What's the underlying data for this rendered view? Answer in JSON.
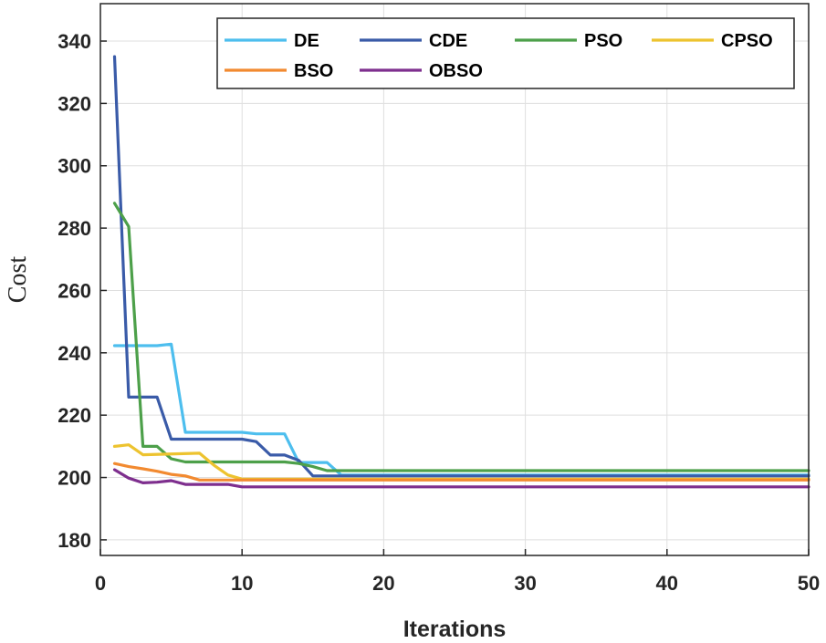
{
  "chart_data": {
    "type": "line",
    "title": "",
    "xlabel": "Iterations",
    "ylabel": "Cost",
    "xlim": [
      0,
      50
    ],
    "ylim": [
      175,
      352
    ],
    "xticks": [
      0,
      10,
      20,
      30,
      40,
      50
    ],
    "yticks": [
      180,
      200,
      220,
      240,
      260,
      280,
      300,
      320,
      340
    ],
    "grid": true,
    "legend_position": "top-right",
    "series": [
      {
        "name": "DE",
        "color": "#4DBEEE",
        "points": [
          [
            1,
            242.3
          ],
          [
            4,
            242.3
          ],
          [
            5,
            242.8
          ],
          [
            6,
            214.5
          ],
          [
            10,
            214.5
          ],
          [
            11,
            214.0
          ],
          [
            13,
            214.0
          ],
          [
            14,
            204.8
          ],
          [
            16,
            204.8
          ],
          [
            17,
            200.8
          ],
          [
            50,
            200.8
          ]
        ]
      },
      {
        "name": "CDE",
        "color": "#3A5BA8",
        "points": [
          [
            1,
            335
          ],
          [
            2,
            225.8
          ],
          [
            4,
            225.8
          ],
          [
            5,
            212.3
          ],
          [
            10,
            212.3
          ],
          [
            11,
            211.5
          ],
          [
            12,
            207.2
          ],
          [
            13,
            207.2
          ],
          [
            14,
            205.5
          ],
          [
            15,
            200.5
          ],
          [
            50,
            200.5
          ]
        ]
      },
      {
        "name": "PSO",
        "color": "#4DA04A",
        "points": [
          [
            1,
            288
          ],
          [
            2,
            280.5
          ],
          [
            3,
            210
          ],
          [
            4,
            210
          ],
          [
            5,
            206
          ],
          [
            6,
            205
          ],
          [
            13,
            205
          ],
          [
            14,
            204.5
          ],
          [
            15,
            203.5
          ],
          [
            16,
            202.2
          ],
          [
            50,
            202.2
          ]
        ]
      },
      {
        "name": "CPSO",
        "color": "#EDC32F",
        "points": [
          [
            1,
            210
          ],
          [
            2,
            210.5
          ],
          [
            3,
            207.3
          ],
          [
            7,
            207.8
          ],
          [
            8,
            204
          ],
          [
            9,
            200.8
          ],
          [
            10,
            199.5
          ],
          [
            50,
            199.5
          ]
        ]
      },
      {
        "name": "BSO",
        "color": "#F28A30",
        "points": [
          [
            1,
            204.5
          ],
          [
            2,
            203.5
          ],
          [
            3,
            202.8
          ],
          [
            4,
            202
          ],
          [
            5,
            201
          ],
          [
            6,
            200.5
          ],
          [
            7,
            199.2
          ],
          [
            50,
            199.2
          ]
        ]
      },
      {
        "name": "OBSO",
        "color": "#7E2F8E",
        "points": [
          [
            1,
            202.5
          ],
          [
            2,
            199.8
          ],
          [
            3,
            198.3
          ],
          [
            4,
            198.5
          ],
          [
            5,
            199
          ],
          [
            6,
            197.8
          ],
          [
            9,
            197.8
          ],
          [
            10,
            197
          ],
          [
            50,
            197
          ]
        ]
      }
    ]
  }
}
